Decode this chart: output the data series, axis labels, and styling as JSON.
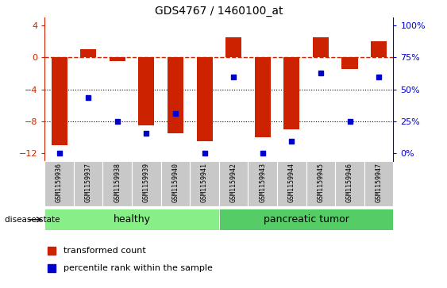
{
  "title": "GDS4767 / 1460100_at",
  "samples": [
    "GSM1159936",
    "GSM1159937",
    "GSM1159938",
    "GSM1159939",
    "GSM1159940",
    "GSM1159941",
    "GSM1159942",
    "GSM1159943",
    "GSM1159944",
    "GSM1159945",
    "GSM1159946",
    "GSM1159947"
  ],
  "bar_values": [
    -11.0,
    1.0,
    -0.5,
    -8.5,
    -9.5,
    -10.5,
    2.5,
    -10.0,
    -9.0,
    2.5,
    -1.5,
    2.0
  ],
  "blue_values": [
    -12.0,
    -5.0,
    -8.0,
    -9.5,
    -7.0,
    -12.0,
    -2.5,
    -12.0,
    -10.5,
    -2.0,
    -8.0,
    -2.5
  ],
  "bar_color": "#cc2200",
  "blue_color": "#0000cc",
  "zero_line_color": "#cc2200",
  "grid_color": "#000000",
  "ylim_left": [
    -13,
    5
  ],
  "y_ticks_left": [
    4,
    0,
    -4,
    -8,
    -12
  ],
  "y_ticks_right": [
    100,
    75,
    50,
    25,
    0
  ],
  "healthy_samples": 6,
  "group_labels": [
    "healthy",
    "pancreatic tumor"
  ],
  "group_colors": [
    "#88ee88",
    "#55cc66"
  ],
  "disease_state_label": "disease state",
  "legend_bar_label": "transformed count",
  "legend_blue_label": "percentile rank within the sample",
  "left_axis_color": "#cc2200",
  "right_axis_color": "#0000cc",
  "bg_color": "#ffffff",
  "tick_label_area_color": "#c8c8c8"
}
